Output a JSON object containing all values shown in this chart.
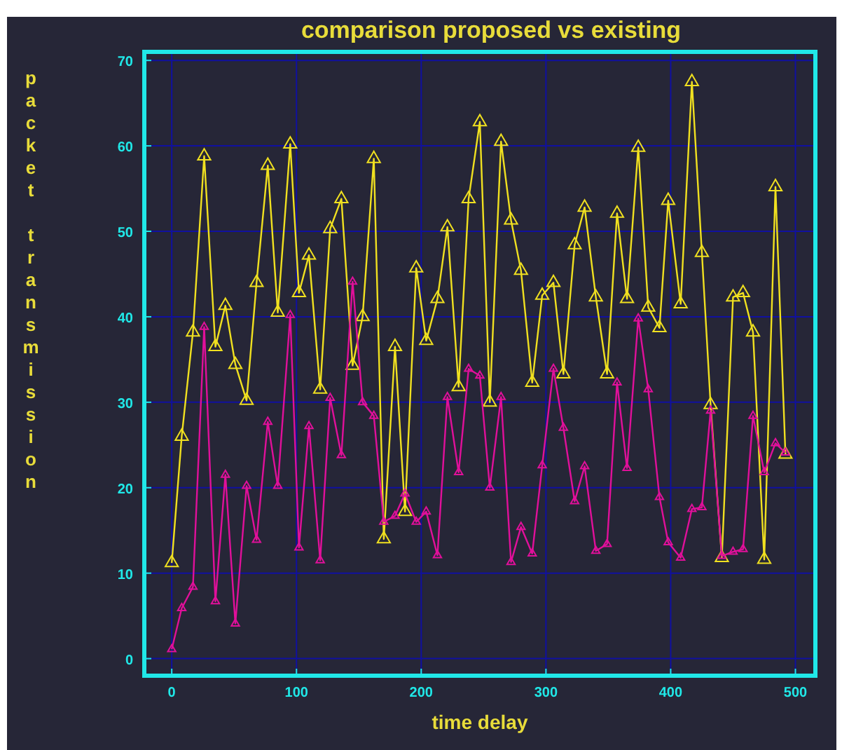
{
  "chart_data": {
    "type": "line",
    "title": "comparison proposed vs existing",
    "xlabel": "time delay",
    "ylabel": "packet transmission",
    "x": [
      0,
      8,
      17,
      26,
      35,
      43,
      51,
      60,
      68,
      77,
      85,
      95,
      102,
      110,
      119,
      127,
      136,
      145,
      153,
      162,
      170,
      179,
      187,
      196,
      204,
      213,
      221,
      230,
      238,
      247,
      255,
      264,
      272,
      280,
      289,
      297,
      306,
      314,
      323,
      331,
      340,
      349,
      357,
      365,
      374,
      382,
      391,
      398,
      408,
      417,
      425,
      432,
      441,
      450,
      458,
      466,
      475,
      484,
      492
    ],
    "series": [
      {
        "color": "#f0e020",
        "values": [
          11.2,
          26,
          38.2,
          58.8,
          36.5,
          41.3,
          34.4,
          30.2,
          44,
          57.7,
          40.5,
          60.2,
          42.8,
          47.2,
          31.5,
          50.3,
          53.8,
          34.3,
          40,
          58.5,
          14,
          36.5,
          17.2,
          45.7,
          37.2,
          42.1,
          50.5,
          31.8,
          53.8,
          62.8,
          30,
          60.5,
          51.3,
          45.4,
          32.3,
          42.5,
          44,
          33.3,
          48.4,
          52.8,
          42.3,
          33.3,
          52.1,
          42.1,
          59.8,
          41.1,
          38.7,
          53.6,
          41.5,
          67.5,
          47.5,
          29.7,
          11.8,
          42.3,
          42.8,
          38.2,
          11.6,
          55.2,
          23.9
        ]
      },
      {
        "color": "#e0109a",
        "values": [
          1.1,
          5.9,
          8.4,
          38.8,
          6.7,
          21.5,
          4.1,
          20.2,
          13.9,
          27.7,
          20.2,
          40.2,
          13,
          27.2,
          11.5,
          30.5,
          23.8,
          44.1,
          30,
          28.4,
          16,
          16.7,
          19.3,
          16,
          17.2,
          12.1,
          30.6,
          21.8,
          33.9,
          33.1,
          20,
          30.6,
          11.3,
          15.4,
          12.3,
          22.6,
          33.9,
          27,
          18.4,
          22.5,
          12.6,
          13.4,
          32.3,
          22.3,
          39.8,
          31.5,
          18.9,
          13.6,
          11.8,
          17.5,
          17.7,
          29,
          12,
          12.5,
          12.8,
          28.4,
          21.8,
          25.2,
          24.1
        ]
      }
    ],
    "xlim": [
      -22,
      516
    ],
    "ylim": [
      -2,
      71
    ],
    "xticks": [
      0,
      100,
      200,
      300,
      400,
      500
    ],
    "yticks": [
      0,
      10,
      20,
      30,
      40,
      50,
      60,
      70
    ],
    "grid": true,
    "marker": "triangle",
    "line_style": "solid"
  }
}
